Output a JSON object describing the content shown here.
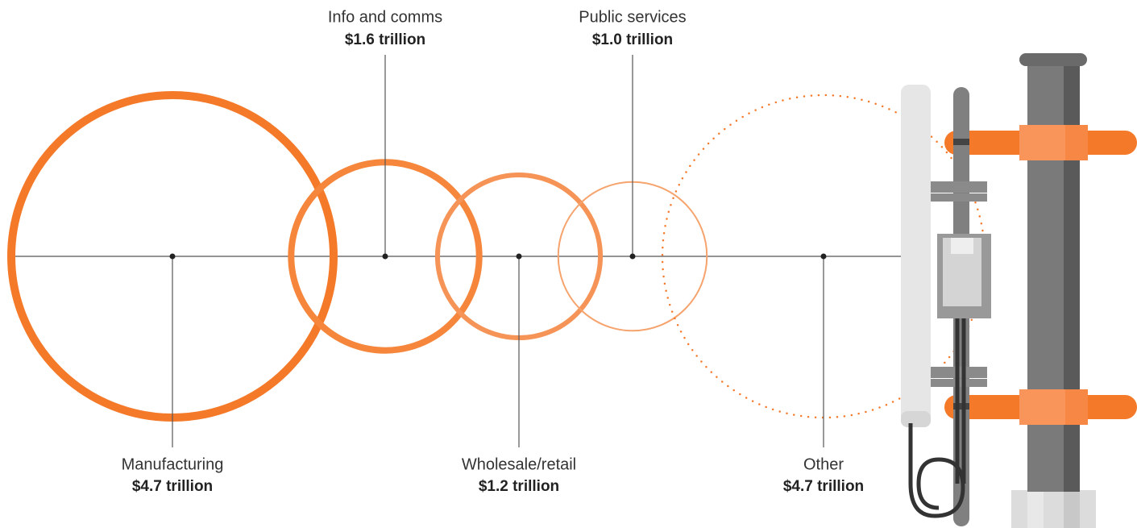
{
  "chart_data": {
    "type": "bubble",
    "categories": [
      "Manufacturing",
      "Info and comms",
      "Wholesale/retail",
      "Public services",
      "Other"
    ],
    "values": [
      4.7,
      1.6,
      1.2,
      1.0,
      4.7
    ],
    "value_labels": [
      "$4.7 trillion",
      "$1.6 trillion",
      "$1.2 trillion",
      "$1.0 trillion",
      "$4.7 trillion"
    ],
    "colors": [
      "#f47a2a",
      "#f5863b",
      "#f59456",
      "#f6a36d",
      "#f47a2a"
    ]
  }
}
